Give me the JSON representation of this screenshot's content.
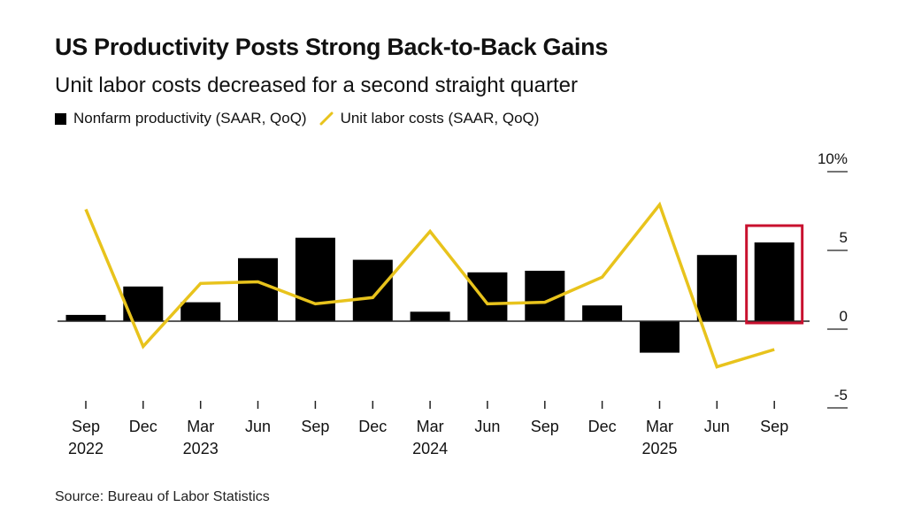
{
  "header": {
    "title": "US Productivity Posts Strong Back-to-Back Gains",
    "subtitle": "Unit labor costs decreased for a second straight quarter"
  },
  "legend": {
    "bars_label": "Nonfarm productivity (SAAR, QoQ)",
    "line_label": "Unit labor costs (SAAR, QoQ)"
  },
  "source": "Source: Bureau of Labor Statistics",
  "colors": {
    "bar": "#000000",
    "line": "#e8c31c",
    "highlight": "#c8102e",
    "axis": "#222222"
  },
  "chart_data": {
    "type": "bar",
    "title": "US Productivity Posts Strong Back-to-Back Gains",
    "subtitle": "Unit labor costs decreased for a second straight quarter",
    "xlabel": "",
    "ylabel": "",
    "ylim": [
      -5,
      10
    ],
    "y_ticks": [
      {
        "value": 10,
        "label": "10%"
      },
      {
        "value": 5,
        "label": "5"
      },
      {
        "value": 0,
        "label": "0"
      },
      {
        "value": -5,
        "label": "-5"
      }
    ],
    "categories": [
      "Sep",
      "Dec",
      "Mar",
      "Jun",
      "Sep",
      "Dec",
      "Mar",
      "Jun",
      "Sep",
      "Dec",
      "Mar",
      "Jun",
      "Sep"
    ],
    "year_labels": [
      "2022",
      "",
      "2023",
      "",
      "",
      "",
      "2024",
      "",
      "",
      "",
      "2025",
      "",
      ""
    ],
    "series": [
      {
        "name": "Nonfarm productivity (SAAR, QoQ)",
        "type": "bar",
        "values": [
          0.4,
          2.2,
          1.2,
          4.0,
          5.3,
          3.9,
          0.6,
          3.1,
          3.2,
          1.0,
          -2.0,
          4.2,
          5.0
        ]
      },
      {
        "name": "Unit labor costs (SAAR, QoQ)",
        "type": "line",
        "values": [
          7.1,
          -1.6,
          2.4,
          2.5,
          1.1,
          1.5,
          5.7,
          1.1,
          1.2,
          2.8,
          7.4,
          -2.9,
          -1.8
        ]
      }
    ],
    "highlight_index": 12,
    "grid": false,
    "legend_position": "top-left"
  }
}
